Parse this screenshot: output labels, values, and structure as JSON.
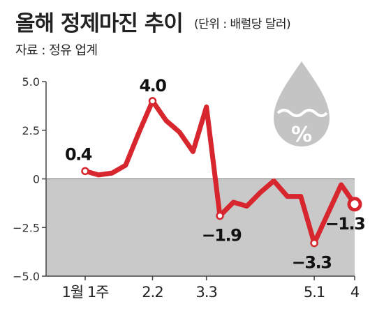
{
  "header": {
    "title": "올해 정제마진 추이",
    "unit": "(단위 : 배럴당 달러)",
    "source": "자료 : 정유 업계"
  },
  "colors": {
    "line": "#d7262e",
    "negative_band": "#c9c9c9",
    "icon": "#c4c4c4"
  },
  "icon": "water-drop-percent-icon",
  "icon_text": "%",
  "chart_data": {
    "type": "line",
    "title": "올해 정제마진 추이",
    "ylim": [
      -5.0,
      5.0
    ],
    "yticks": [
      "5.0",
      "2.5",
      "0",
      "−2.5",
      "−5.0"
    ],
    "ytick_values": [
      5.0,
      2.5,
      0,
      -2.5,
      -5.0
    ],
    "x_tick_labels": [
      {
        "index": 0,
        "label": "1월 1주"
      },
      {
        "index": 5,
        "label": "2.2"
      },
      {
        "index": 9,
        "label": "3.3"
      },
      {
        "index": 17,
        "label": "5.1"
      },
      {
        "index": 20,
        "label": "4"
      }
    ],
    "series": [
      {
        "values": [
          0.4,
          0.2,
          0.3,
          0.7,
          2.4,
          4.0,
          3.0,
          2.4,
          1.4,
          3.7,
          -1.9,
          -1.2,
          -1.4,
          -0.7,
          -0.1,
          -0.9,
          -0.9,
          -3.3,
          -1.8,
          -0.3,
          -1.3
        ]
      }
    ],
    "labeled_points": [
      {
        "index": 0,
        "label": "0.4"
      },
      {
        "index": 5,
        "label": "4.0"
      },
      {
        "index": 10,
        "label": "−1.9"
      },
      {
        "index": 17,
        "label": "−3.3"
      },
      {
        "index": 20,
        "label": "−1.3"
      }
    ]
  }
}
